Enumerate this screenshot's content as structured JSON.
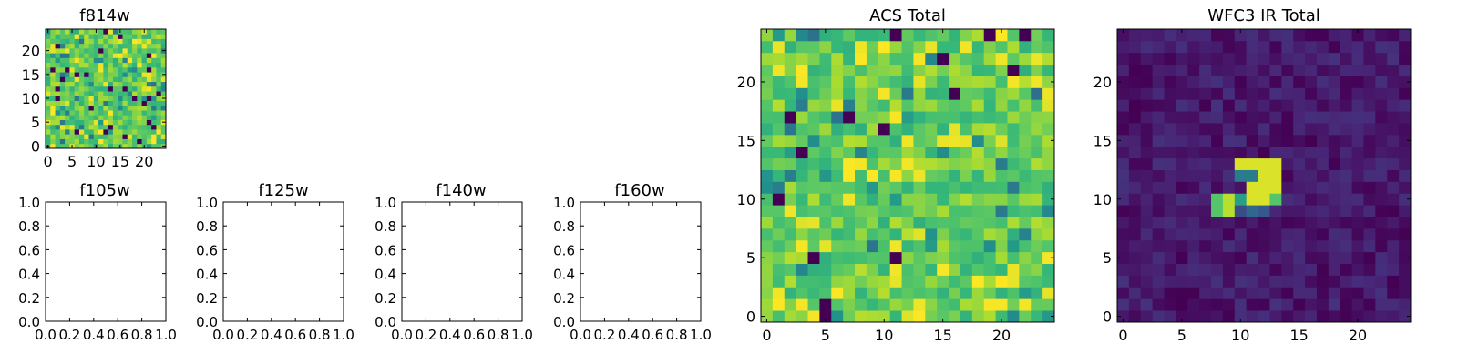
{
  "figure": {
    "background": "#ffffff"
  },
  "chart_data": [
    {
      "id": "f814w",
      "type": "heatmap",
      "title": "f814w",
      "xlim": [
        0,
        25
      ],
      "ylim": [
        0,
        25
      ],
      "xticks": [
        0,
        5,
        10,
        15,
        20
      ],
      "yticks": [
        0,
        5,
        10,
        15,
        20
      ],
      "rows": 25,
      "cols": 25,
      "colormap": "viridis",
      "pattern": "noise",
      "value_range": [
        0.0,
        1.0
      ],
      "seed": 814
    },
    {
      "id": "f105w",
      "type": "empty",
      "title": "f105w",
      "xlim": [
        0,
        1
      ],
      "ylim": [
        0,
        1
      ],
      "xticks": [
        "0.0",
        "0.2",
        "0.4",
        "0.6",
        "0.8",
        "1.0"
      ],
      "yticks": [
        "0.0",
        "0.2",
        "0.4",
        "0.6",
        "0.8",
        "1.0"
      ]
    },
    {
      "id": "f125w",
      "type": "empty",
      "title": "f125w",
      "xlim": [
        0,
        1
      ],
      "ylim": [
        0,
        1
      ],
      "xticks": [
        "0.0",
        "0.2",
        "0.4",
        "0.6",
        "0.8",
        "1.0"
      ],
      "yticks": [
        "0.0",
        "0.2",
        "0.4",
        "0.6",
        "0.8",
        "1.0"
      ]
    },
    {
      "id": "f140w",
      "type": "empty",
      "title": "f140w",
      "xlim": [
        0,
        1
      ],
      "ylim": [
        0,
        1
      ],
      "xticks": [
        "0.0",
        "0.2",
        "0.4",
        "0.6",
        "0.8",
        "1.0"
      ],
      "yticks": [
        "0.0",
        "0.2",
        "0.4",
        "0.6",
        "0.8",
        "1.0"
      ]
    },
    {
      "id": "f160w",
      "type": "empty",
      "title": "f160w",
      "xlim": [
        0,
        1
      ],
      "ylim": [
        0,
        1
      ],
      "xticks": [
        "0.0",
        "0.2",
        "0.4",
        "0.6",
        "0.8",
        "1.0"
      ],
      "yticks": [
        "0.0",
        "0.2",
        "0.4",
        "0.6",
        "0.8",
        "1.0"
      ]
    },
    {
      "id": "acs_total",
      "type": "heatmap",
      "title": "ACS Total",
      "xlim": [
        0,
        25
      ],
      "ylim": [
        0,
        25
      ],
      "xticks": [
        0,
        5,
        10,
        15,
        20
      ],
      "yticks": [
        0,
        5,
        10,
        15,
        20
      ],
      "rows": 25,
      "cols": 25,
      "colormap": "viridis",
      "pattern": "noise",
      "value_range": [
        0.0,
        1.0
      ],
      "seed": 2718
    },
    {
      "id": "wfc3_ir_total",
      "type": "heatmap",
      "title": "WFC3 IR Total",
      "xlim": [
        0,
        25
      ],
      "ylim": [
        0,
        25
      ],
      "xticks": [
        0,
        5,
        10,
        15,
        20
      ],
      "yticks": [
        0,
        5,
        10,
        15,
        20
      ],
      "rows": 25,
      "cols": 25,
      "colormap": "viridis",
      "pattern": "source",
      "background_range": [
        0.0,
        0.18
      ],
      "bright_pixels": [
        {
          "col": 10,
          "row": 13,
          "value": 0.95
        },
        {
          "col": 11,
          "row": 13,
          "value": 0.95
        },
        {
          "col": 12,
          "row": 13,
          "value": 0.95
        },
        {
          "col": 13,
          "row": 13,
          "value": 0.95
        },
        {
          "col": 10,
          "row": 12,
          "value": 0.45
        },
        {
          "col": 11,
          "row": 12,
          "value": 0.45
        },
        {
          "col": 12,
          "row": 12,
          "value": 0.95
        },
        {
          "col": 13,
          "row": 12,
          "value": 0.95
        },
        {
          "col": 11,
          "row": 11,
          "value": 0.95
        },
        {
          "col": 12,
          "row": 11,
          "value": 0.95
        },
        {
          "col": 13,
          "row": 11,
          "value": 0.95
        },
        {
          "col": 8,
          "row": 10,
          "value": 0.72
        },
        {
          "col": 9,
          "row": 10,
          "value": 0.9
        },
        {
          "col": 10,
          "row": 10,
          "value": 0.55
        },
        {
          "col": 11,
          "row": 10,
          "value": 0.95
        },
        {
          "col": 12,
          "row": 10,
          "value": 0.95
        },
        {
          "col": 13,
          "row": 10,
          "value": 0.72
        },
        {
          "col": 8,
          "row": 9,
          "value": 0.72
        },
        {
          "col": 9,
          "row": 9,
          "value": 0.9
        },
        {
          "col": 10,
          "row": 9,
          "value": 0.3
        },
        {
          "col": 11,
          "row": 9,
          "value": 0.4
        },
        {
          "col": 12,
          "row": 9,
          "value": 0.35
        }
      ],
      "seed": 3141
    }
  ]
}
